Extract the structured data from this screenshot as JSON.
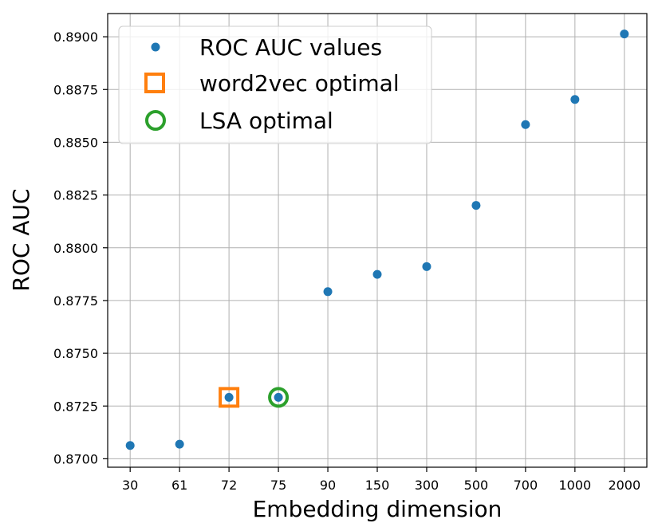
{
  "chart_data": {
    "type": "scatter",
    "title": "",
    "xlabel": "Embedding dimension",
    "ylabel": "ROC AUC",
    "categories": [
      "30",
      "61",
      "72",
      "75",
      "90",
      "150",
      "300",
      "500",
      "700",
      "1000",
      "2000"
    ],
    "ylim": [
      0.8696,
      0.8911
    ],
    "yticks": [
      "0.8700",
      "0.8725",
      "0.8750",
      "0.8775",
      "0.8800",
      "0.8825",
      "0.8850",
      "0.8875",
      "0.8900"
    ],
    "grid": true,
    "legend_position": "top-left",
    "series": [
      {
        "name": "ROC AUC values",
        "marker": "dot",
        "color": "#1f77b4",
        "values": [
          0.87063,
          0.87069,
          0.87291,
          0.87291,
          0.87792,
          0.87874,
          0.87911,
          0.88201,
          0.88584,
          0.88703,
          0.89013
        ]
      },
      {
        "name": "word2vec optimal",
        "marker": "open-square",
        "color": "#ff7f0e",
        "points": [
          {
            "x": "72",
            "y": 0.87291
          }
        ]
      },
      {
        "name": "LSA optimal",
        "marker": "open-circle",
        "color": "#2ca02c",
        "points": [
          {
            "x": "75",
            "y": 0.87291
          }
        ]
      }
    ]
  }
}
